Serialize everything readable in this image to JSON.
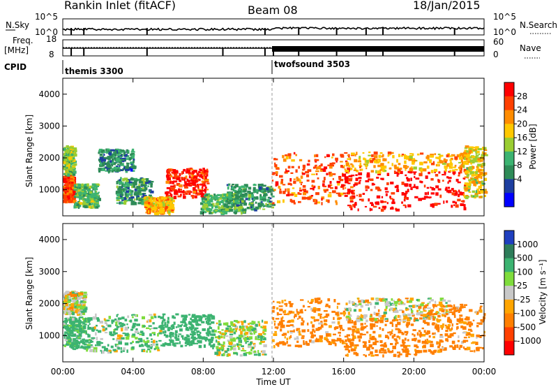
{
  "header": {
    "station": "Rankin Inlet (fitACF)",
    "beam": "Beam 08",
    "date": "18/Jan/2015"
  },
  "strip": {
    "nsky_label": "N.Sky",
    "nsky_ticks": [
      "10^5",
      "10^0"
    ],
    "nsearch_label": "N.Search",
    "nsearch_ticks": [
      "10^5",
      "10^0"
    ],
    "freq_label": "Freq.",
    "freq_unit": "[MHz]",
    "freq_ticks": [
      "18",
      "8"
    ],
    "nave_label": "Nave",
    "nave_ticks": [
      "60",
      "0"
    ],
    "cpid_label": "CPID",
    "modes": [
      {
        "name": "themis 3300",
        "start_hour": 0,
        "end_hour": 11.9
      },
      {
        "name": "twofsound 3503",
        "start_hour": 11.9,
        "end_hour": 24
      }
    ]
  },
  "axes": {
    "xlabel": "Time UT",
    "ylabel": "Slant Range [km]",
    "x_ticks": [
      "00:00",
      "04:00",
      "08:00",
      "12:00",
      "16:00",
      "20:00",
      "00:00"
    ],
    "y_ticks": [
      "1000",
      "2000",
      "3000",
      "4000"
    ]
  },
  "colorbars": {
    "power": {
      "label": "Power [dB]",
      "ticks": [
        "28",
        "24",
        "20",
        "16",
        "12",
        "8",
        "4"
      ],
      "colors": [
        "#ff0000",
        "#ff4000",
        "#ff8c00",
        "#ffc800",
        "#9acd32",
        "#3cb371",
        "#2e8b57",
        "#1e3fa0",
        "#0000ff"
      ]
    },
    "velocity": {
      "label": "Velocity [m s⁻¹]",
      "ticks": [
        "1000",
        "500",
        "100",
        "25",
        "-25",
        "-100",
        "-500",
        "-1000"
      ],
      "colors": [
        "#1f3fbf",
        "#2e7d5a",
        "#3cb371",
        "#7fdc3c",
        "#c8c8c8",
        "#ffa500",
        "#ff7f00",
        "#ff4000",
        "#ff0000"
      ]
    }
  },
  "chart_data": [
    {
      "type": "heatmap",
      "title": "Power",
      "xlabel": "Time UT",
      "ylabel": "Slant Range [km]",
      "xlim": [
        0,
        24
      ],
      "ylim": [
        180,
        4500
      ],
      "x_unit": "hours UT",
      "colorbar_range": [
        0,
        30
      ],
      "regions": [
        {
          "x0": 0.0,
          "x1": 0.6,
          "y0": 650,
          "y1": 1500,
          "level": 26
        },
        {
          "x0": 0.0,
          "x1": 0.6,
          "y0": 1500,
          "y1": 2400,
          "level": 14
        },
        {
          "x0": 0.6,
          "x1": 2.0,
          "y0": 500,
          "y1": 1200,
          "level": 12
        },
        {
          "x0": 2.0,
          "x1": 4.0,
          "y0": 1600,
          "y1": 2300,
          "level": 8
        },
        {
          "x0": 3.0,
          "x1": 5.0,
          "y0": 600,
          "y1": 1400,
          "level": 10
        },
        {
          "x0": 4.6,
          "x1": 6.2,
          "y0": 300,
          "y1": 800,
          "level": 20
        },
        {
          "x0": 5.8,
          "x1": 8.2,
          "y0": 800,
          "y1": 1700,
          "level": 27
        },
        {
          "x0": 7.8,
          "x1": 10.3,
          "y0": 300,
          "y1": 900,
          "level": 12
        },
        {
          "x0": 9.3,
          "x1": 11.9,
          "y0": 400,
          "y1": 1200,
          "level": 10
        },
        {
          "x0": 11.9,
          "x1": 16.5,
          "y0": 600,
          "y1": 2200,
          "level": 24
        },
        {
          "x0": 16.0,
          "x1": 23.0,
          "y0": 400,
          "y1": 1600,
          "level": 29
        },
        {
          "x0": 16.0,
          "x1": 23.0,
          "y0": 1600,
          "y1": 2200,
          "level": 20
        },
        {
          "x0": 22.8,
          "x1": 24.0,
          "y0": 800,
          "y1": 2400,
          "level": 18
        }
      ]
    },
    {
      "type": "heatmap",
      "title": "Velocity",
      "xlabel": "Time UT",
      "ylabel": "Slant Range [km]",
      "xlim": [
        0,
        24
      ],
      "ylim": [
        180,
        4500
      ],
      "x_unit": "hours UT",
      "colorbar_range": [
        -1000,
        1000
      ],
      "regions": [
        {
          "x0": 0.0,
          "x1": 1.2,
          "y0": 1700,
          "y1": 2400,
          "level": 0
        },
        {
          "x0": 0.0,
          "x1": 1.5,
          "y0": 600,
          "y1": 1600,
          "level": 150
        },
        {
          "x0": 1.5,
          "x1": 5.5,
          "y0": 500,
          "y1": 1700,
          "level": 100
        },
        {
          "x0": 5.5,
          "x1": 8.5,
          "y0": 700,
          "y1": 1700,
          "level": 300
        },
        {
          "x0": 8.5,
          "x1": 11.5,
          "y0": 400,
          "y1": 1500,
          "level": 50
        },
        {
          "x0": 11.9,
          "x1": 16.0,
          "y0": 700,
          "y1": 2200,
          "level": -150
        },
        {
          "x0": 16.0,
          "x1": 20.5,
          "y0": 400,
          "y1": 1600,
          "level": -200
        },
        {
          "x0": 16.0,
          "x1": 22.0,
          "y0": 1500,
          "y1": 2200,
          "level": 0
        },
        {
          "x0": 20.5,
          "x1": 24.0,
          "y0": 500,
          "y1": 2000,
          "level": -150
        }
      ]
    }
  ]
}
